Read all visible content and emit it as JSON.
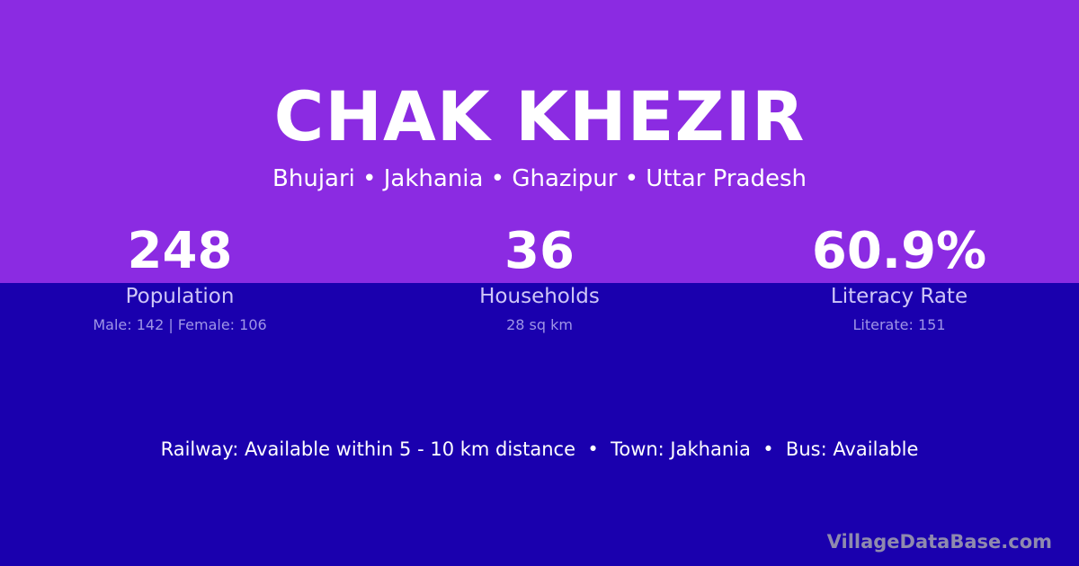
{
  "village": {
    "name": "CHAK KHEZIR",
    "location": "Bhujari • Jakhania • Ghazipur • Uttar Pradesh"
  },
  "stats": [
    {
      "value": "248",
      "label": "Population",
      "detail": "Male: 142 | Female: 106"
    },
    {
      "value": "36",
      "label": "Households",
      "detail": "28 sq km"
    },
    {
      "value": "60.9%",
      "label": "Literacy Rate",
      "detail": "Literate: 151"
    }
  ],
  "facts": "Railway: Available within 5 - 10 km distance  •  Town: Jakhania  •  Bus: Available",
  "watermark": "VillageDataBase.com",
  "colors": {
    "header_bg": "#8b2be2",
    "body_bg": "#1a00ae"
  }
}
